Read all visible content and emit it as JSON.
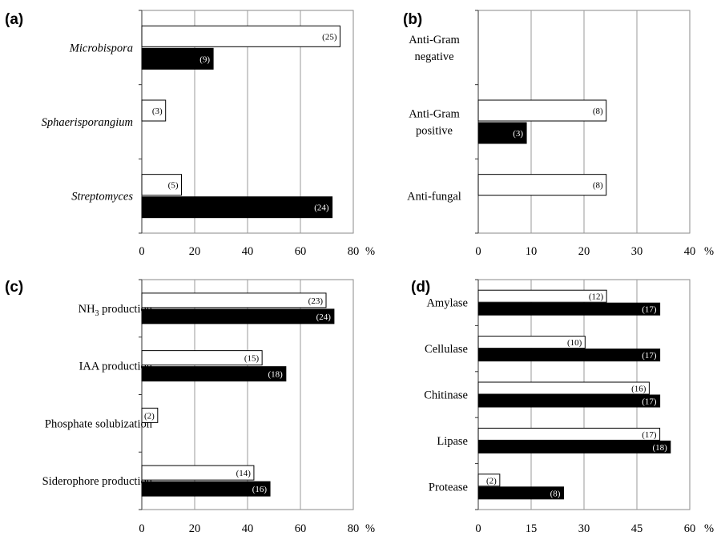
{
  "chart_data": [
    {
      "type": "bar",
      "orientation": "horizontal",
      "panel_label": "(a)",
      "categories": [
        "Microbispora",
        "Sphaerisporangium",
        "Streptomyces"
      ],
      "category_lines": [
        [
          "Microbispora"
        ],
        [
          "Sphaerisporangium"
        ],
        [
          "Streptomyces"
        ]
      ],
      "category_style": "italic",
      "xlim": [
        0,
        80
      ],
      "xticks": [
        0,
        20,
        40,
        60,
        80
      ],
      "xunit": "%",
      "grid": true,
      "series": [
        {
          "style": "open",
          "values": [
            75,
            9,
            15
          ],
          "labels": [
            "(25)",
            "(3)",
            "(5)"
          ]
        },
        {
          "style": "filled",
          "values": [
            27,
            null,
            72
          ],
          "labels": [
            "(9)",
            null,
            "(24)"
          ]
        }
      ]
    },
    {
      "type": "bar",
      "orientation": "horizontal",
      "panel_label": "(b)",
      "categories": [
        "Anti-Gram negative",
        "Anti-Gram positive",
        "Anti-fungal"
      ],
      "category_lines": [
        [
          "Anti-Gram",
          "negative"
        ],
        [
          "Anti-Gram",
          "positive"
        ],
        [
          "Anti-fungal"
        ]
      ],
      "category_style": "normal",
      "xlim": [
        0,
        40
      ],
      "xticks": [
        0,
        10,
        20,
        30,
        40
      ],
      "xunit": "%",
      "grid": true,
      "series": [
        {
          "style": "open",
          "values": [
            null,
            24.2,
            24.2
          ],
          "labels": [
            null,
            "(8)",
            "(8)"
          ]
        },
        {
          "style": "filled",
          "values": [
            null,
            9.1,
            null
          ],
          "labels": [
            null,
            "(3)",
            null
          ]
        }
      ]
    },
    {
      "type": "bar",
      "orientation": "horizontal",
      "panel_label": "(c)",
      "categories": [
        "NH3 production",
        "IAA production",
        "Phosphate solubization",
        "Siderophore production"
      ],
      "category_lines": [
        [
          "NH",
          "3",
          " production"
        ],
        [
          "IAA production"
        ],
        [
          "Phosphate solubization"
        ],
        [
          "Siderophore production"
        ]
      ],
      "category_style": "normal",
      "xlim": [
        0,
        80
      ],
      "xticks": [
        0,
        20,
        40,
        60,
        80
      ],
      "xunit": "%",
      "grid": true,
      "series": [
        {
          "style": "open",
          "values": [
            69.7,
            45.5,
            6,
            42.4
          ],
          "labels": [
            "(23)",
            "(15)",
            "(2)",
            "(14)"
          ]
        },
        {
          "style": "filled",
          "values": [
            72.7,
            54.5,
            null,
            48.5
          ],
          "labels": [
            "(24)",
            "(18)",
            null,
            "(16)"
          ]
        }
      ]
    },
    {
      "type": "bar",
      "orientation": "horizontal",
      "panel_label": "(d)",
      "categories": [
        "Amylase",
        "Cellulase",
        "Chitinase",
        "Lipase",
        "Protease"
      ],
      "category_lines": [
        [
          "Amylase"
        ],
        [
          "Cellulase"
        ],
        [
          "Chitinase"
        ],
        [
          "Lipase"
        ],
        [
          "Protease"
        ]
      ],
      "category_style": "normal",
      "xlim": [
        0,
        60
      ],
      "xticks": [
        0,
        15,
        30,
        45,
        60
      ],
      "xunit": "%",
      "grid": true,
      "series": [
        {
          "style": "open",
          "values": [
            36.4,
            30.3,
            48.5,
            51.5,
            6.1
          ],
          "labels": [
            "(12)",
            "(10)",
            "(16)",
            "(17)",
            "(2)"
          ]
        },
        {
          "style": "filled",
          "values": [
            51.5,
            51.5,
            51.5,
            54.5,
            24.2
          ],
          "labels": [
            "(17)",
            "(17)",
            "(17)",
            "(18)",
            "(8)"
          ]
        }
      ]
    }
  ]
}
